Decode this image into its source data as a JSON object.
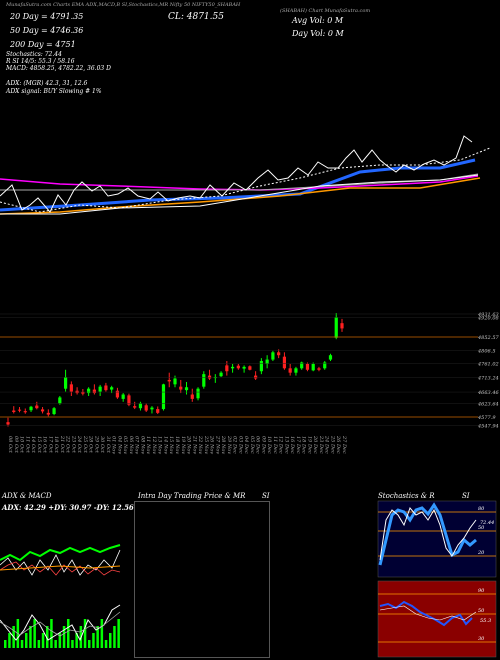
{
  "header": {
    "top_line": "MunafaSutra.com Charts EMA ADX,MACD,B SI,Stochastics,MR Nifty 50 NIFTY50_SHABAH",
    "top_right": "(SHABAH) Chart MunafaSutra.com",
    "ema20": "20 Day = 4791.35",
    "ema50": "50 Day = 4746.36",
    "ema200": "200 Day = 4751",
    "cl": "CL: 4871.55",
    "avg_vol": "Avg Vol: 0  M",
    "day_vol": "Day Vol: 0  M",
    "stochastics": "Stochastics: 72.44",
    "si_line": "R          SI 14/5: 55.3 / 58.16",
    "macd_line": "MACD: 4858.25, 4782.22, 36.03 D",
    "adx_line": "ADX:                       (MGR) 42.3,  31,  12.6",
    "adx_signal": "ADX  signal:              BUY Slowing # 1%"
  },
  "price_labels": [
    "4931.63",
    "4920.08",
    "4852.57",
    "4806.5",
    "4761.02",
    "4713.24",
    "4663.46",
    "4623.64",
    "4577.9",
    "4547.94"
  ],
  "date_labels": [
    "08 Oct",
    "09 Oct",
    "10 Oct",
    "11 Oct",
    "14 Oct",
    "15 Oct",
    "16 Oct",
    "17 Oct",
    "18 Oct",
    "21 Oct",
    "22 Oct",
    "23 Oct",
    "24 Oct",
    "25 Oct",
    "28 Oct",
    "29 Oct",
    "30 Oct",
    "31 Oct",
    "01 Nov",
    "04 Nov",
    "05 Nov",
    "06 Nov",
    "07 Nov",
    "08 Nov",
    "11 Nov",
    "12 Nov",
    "13 Nov",
    "14 Nov",
    "15 Nov",
    "18 Nov",
    "19 Nov",
    "20 Nov",
    "21 Nov",
    "22 Nov",
    "25 Nov",
    "26 Nov",
    "27 Nov",
    "28 Nov",
    "29 Nov",
    "02 Dec",
    "03 Dec",
    "04 Dec",
    "05 Dec",
    "06 Dec",
    "09 Dec",
    "10 Dec",
    "11 Dec",
    "12 Dec",
    "13 Dec",
    "16 Dec",
    "17 Dec",
    "18 Dec",
    "19 Dec",
    "20 Dec",
    "23 Dec",
    "24 Dec",
    "25 Dec",
    "26 Dec",
    "27 Dec"
  ],
  "panels": {
    "adx_title": "ADX  & MACD",
    "adx_readout": "ADX: 42.29 +DY: 30.97 -DY: 12.56",
    "intraday_title": "Intra Day Trading Price  & MR",
    "si_title": "SI",
    "stoch_title": "Stochastics & R",
    "stoch_si": "SI",
    "stoch_levels": [
      "80",
      "50",
      "20"
    ],
    "stoch_readout": "72.44",
    "si_levels": [
      "90",
      "50",
      "30"
    ],
    "si_readout": "55.3"
  },
  "colors": {
    "bull": "#00ff00",
    "bear": "#ff2020",
    "ema20": "#2266ff",
    "ema50": "#ff9900",
    "ema200": "#ff00ff"
  },
  "chart_data": {
    "type": "candlestick",
    "title": "NIFTY50_SHABAH",
    "candles": [
      {
        "o": 4560,
        "h": 4575,
        "l": 4545,
        "c": 4552
      },
      {
        "o": 4600,
        "h": 4615,
        "l": 4590,
        "c": 4595
      },
      {
        "o": 4603,
        "h": 4612,
        "l": 4594,
        "c": 4600
      },
      {
        "o": 4598,
        "h": 4607,
        "l": 4589,
        "c": 4594
      },
      {
        "o": 4601,
        "h": 4616,
        "l": 4595,
        "c": 4613
      },
      {
        "o": 4617,
        "h": 4630,
        "l": 4604,
        "c": 4608
      },
      {
        "o": 4604,
        "h": 4612,
        "l": 4590,
        "c": 4597
      },
      {
        "o": 4592,
        "h": 4604,
        "l": 4580,
        "c": 4586
      },
      {
        "o": 4588,
        "h": 4612,
        "l": 4584,
        "c": 4608
      },
      {
        "o": 4625,
        "h": 4650,
        "l": 4620,
        "c": 4645
      },
      {
        "o": 4675,
        "h": 4740,
        "l": 4665,
        "c": 4715
      },
      {
        "o": 4690,
        "h": 4700,
        "l": 4650,
        "c": 4665
      },
      {
        "o": 4668,
        "h": 4680,
        "l": 4655,
        "c": 4660
      },
      {
        "o": 4664,
        "h": 4674,
        "l": 4652,
        "c": 4658
      },
      {
        "o": 4660,
        "h": 4680,
        "l": 4650,
        "c": 4675
      },
      {
        "o": 4672,
        "h": 4690,
        "l": 4655,
        "c": 4660
      },
      {
        "o": 4665,
        "h": 4688,
        "l": 4650,
        "c": 4682
      },
      {
        "o": 4686,
        "h": 4695,
        "l": 4665,
        "c": 4670
      },
      {
        "o": 4672,
        "h": 4685,
        "l": 4660,
        "c": 4680
      },
      {
        "o": 4668,
        "h": 4678,
        "l": 4640,
        "c": 4645
      },
      {
        "o": 4640,
        "h": 4660,
        "l": 4630,
        "c": 4655
      },
      {
        "o": 4652,
        "h": 4658,
        "l": 4615,
        "c": 4620
      },
      {
        "o": 4615,
        "h": 4630,
        "l": 4605,
        "c": 4610
      },
      {
        "o": 4608,
        "h": 4630,
        "l": 4600,
        "c": 4625
      },
      {
        "o": 4618,
        "h": 4625,
        "l": 4595,
        "c": 4600
      },
      {
        "o": 4604,
        "h": 4615,
        "l": 4590,
        "c": 4610
      },
      {
        "o": 4605,
        "h": 4614,
        "l": 4588,
        "c": 4592
      },
      {
        "o": 4605,
        "h": 4692,
        "l": 4600,
        "c": 4690
      },
      {
        "o": 4705,
        "h": 4730,
        "l": 4680,
        "c": 4700
      },
      {
        "o": 4690,
        "h": 4720,
        "l": 4680,
        "c": 4710
      },
      {
        "o": 4682,
        "h": 4705,
        "l": 4660,
        "c": 4672
      },
      {
        "o": 4670,
        "h": 4698,
        "l": 4655,
        "c": 4680
      },
      {
        "o": 4655,
        "h": 4675,
        "l": 4630,
        "c": 4640
      },
      {
        "o": 4642,
        "h": 4680,
        "l": 4635,
        "c": 4675
      },
      {
        "o": 4682,
        "h": 4735,
        "l": 4675,
        "c": 4725
      },
      {
        "o": 4720,
        "h": 4740,
        "l": 4705,
        "c": 4710
      },
      {
        "o": 4712,
        "h": 4725,
        "l": 4695,
        "c": 4715
      },
      {
        "o": 4718,
        "h": 4735,
        "l": 4715,
        "c": 4730
      },
      {
        "o": 4755,
        "h": 4770,
        "l": 4720,
        "c": 4735
      },
      {
        "o": 4745,
        "h": 4760,
        "l": 4730,
        "c": 4750
      },
      {
        "o": 4754,
        "h": 4760,
        "l": 4740,
        "c": 4745
      },
      {
        "o": 4744,
        "h": 4755,
        "l": 4730,
        "c": 4750
      },
      {
        "o": 4752,
        "h": 4755,
        "l": 4738,
        "c": 4740
      },
      {
        "o": 4720,
        "h": 4735,
        "l": 4705,
        "c": 4710
      },
      {
        "o": 4735,
        "h": 4780,
        "l": 4725,
        "c": 4770
      },
      {
        "o": 4760,
        "h": 4790,
        "l": 4745,
        "c": 4775
      },
      {
        "o": 4775,
        "h": 4805,
        "l": 4770,
        "c": 4800
      },
      {
        "o": 4800,
        "h": 4810,
        "l": 4780,
        "c": 4790
      },
      {
        "o": 4785,
        "h": 4800,
        "l": 4740,
        "c": 4745
      },
      {
        "o": 4745,
        "h": 4760,
        "l": 4720,
        "c": 4730
      },
      {
        "o": 4730,
        "h": 4750,
        "l": 4720,
        "c": 4745
      },
      {
        "o": 4745,
        "h": 4768,
        "l": 4740,
        "c": 4765
      },
      {
        "o": 4760,
        "h": 4765,
        "l": 4735,
        "c": 4740
      },
      {
        "o": 4738,
        "h": 4765,
        "l": 4735,
        "c": 4760
      },
      {
        "o": 4745,
        "h": 4750,
        "l": 4735,
        "c": 4740
      },
      {
        "o": 4745,
        "h": 4770,
        "l": 4740,
        "c": 4765
      },
      {
        "o": 4775,
        "h": 4795,
        "l": 4770,
        "c": 4790
      },
      {
        "o": 4850,
        "h": 4935,
        "l": 4845,
        "c": 4920
      },
      {
        "o": 4900,
        "h": 4915,
        "l": 4870,
        "c": 4882
      }
    ],
    "ylim": [
      4540,
      4935
    ]
  }
}
